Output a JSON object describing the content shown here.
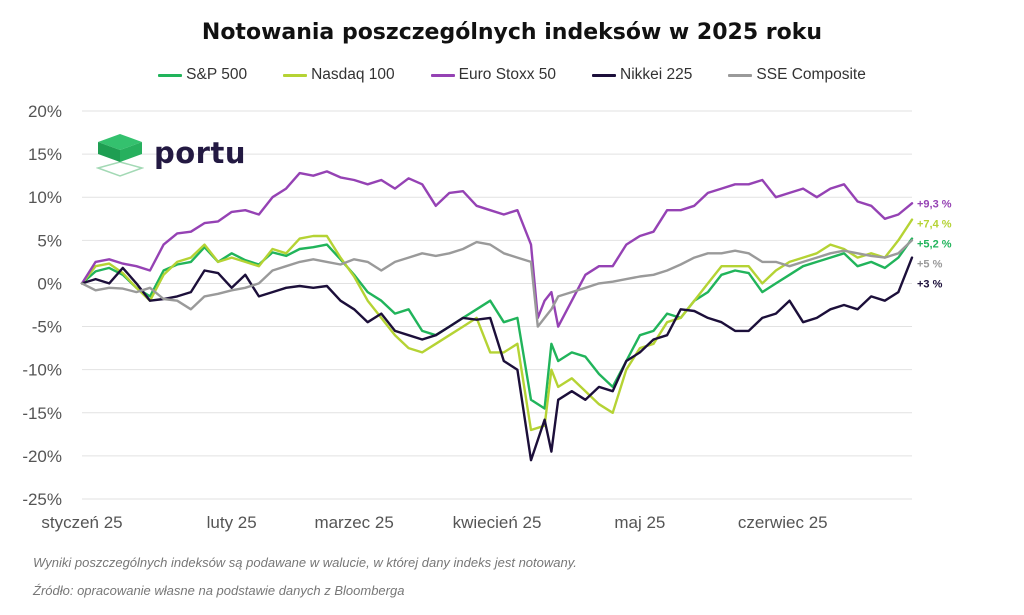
{
  "logo": {
    "text": "portu",
    "color": "#231942",
    "icon": "stacked-cube-logo-icon"
  },
  "footnotes": [
    "Wyniki poszczególnych indeksów są podawane w walucie, w której dany indeks jest notowany.",
    "Źródło: opracowanie własne na podstawie danych z Bloomberga"
  ],
  "chart_data": {
    "type": "line",
    "title": "Notowania poszczególnych indeksów w 2025 roku",
    "xlabel": "",
    "ylabel": "",
    "x_ticks": [
      "styczeń 25",
      "luty 25",
      "marzec 25",
      "kwiecień 25",
      "maj 25",
      "czerwiec 25"
    ],
    "x_range": [
      0,
      122
    ],
    "x_tick_positions": [
      0,
      22,
      40,
      61,
      82,
      103
    ],
    "ylim": [
      -25,
      20
    ],
    "y_ticks": [
      "20%",
      "15%",
      "10%",
      "5%",
      "0%",
      "-5%",
      "-10%",
      "-15%",
      "-20%",
      "-25%"
    ],
    "grid": true,
    "legend_position": "top",
    "series": [
      {
        "name": "S&P 500",
        "color": "#21B45B",
        "end_label": "+5,2 %",
        "points": [
          [
            0,
            0
          ],
          [
            2,
            1.4
          ],
          [
            4,
            1.8
          ],
          [
            6,
            1
          ],
          [
            8,
            -0.5
          ],
          [
            10,
            -1.5
          ],
          [
            12,
            1.5
          ],
          [
            14,
            2.2
          ],
          [
            16,
            2.5
          ],
          [
            18,
            4.2
          ],
          [
            20,
            2.5
          ],
          [
            22,
            3.5
          ],
          [
            24,
            2.7
          ],
          [
            26,
            2.2
          ],
          [
            28,
            3.6
          ],
          [
            30,
            3.2
          ],
          [
            32,
            4
          ],
          [
            34,
            4.2
          ],
          [
            36,
            4.5
          ],
          [
            38,
            2.8
          ],
          [
            40,
            1
          ],
          [
            42,
            -1
          ],
          [
            44,
            -2
          ],
          [
            46,
            -3.5
          ],
          [
            48,
            -3
          ],
          [
            50,
            -5.5
          ],
          [
            52,
            -6
          ],
          [
            54,
            -5
          ],
          [
            56,
            -4
          ],
          [
            58,
            -3
          ],
          [
            60,
            -2
          ],
          [
            62,
            -4.5
          ],
          [
            64,
            -4
          ],
          [
            66,
            -13.5
          ],
          [
            68,
            -14.5
          ],
          [
            69,
            -7
          ],
          [
            70,
            -9
          ],
          [
            72,
            -8
          ],
          [
            74,
            -8.5
          ],
          [
            76,
            -10.5
          ],
          [
            78,
            -12
          ],
          [
            80,
            -9
          ],
          [
            82,
            -6
          ],
          [
            84,
            -5.5
          ],
          [
            86,
            -3.5
          ],
          [
            88,
            -4
          ],
          [
            90,
            -2
          ],
          [
            92,
            -1
          ],
          [
            94,
            1
          ],
          [
            96,
            1.5
          ],
          [
            98,
            1.2
          ],
          [
            100,
            -1
          ],
          [
            102,
            0
          ],
          [
            104,
            1
          ],
          [
            106,
            2
          ],
          [
            108,
            2.5
          ],
          [
            110,
            3
          ],
          [
            112,
            3.5
          ],
          [
            114,
            2
          ],
          [
            116,
            2.5
          ],
          [
            118,
            1.8
          ],
          [
            120,
            3
          ],
          [
            122,
            5.2
          ]
        ]
      },
      {
        "name": "Nasdaq 100",
        "color": "#B5D334",
        "end_label": "+7,4 %",
        "points": [
          [
            0,
            0
          ],
          [
            2,
            2
          ],
          [
            4,
            2.3
          ],
          [
            6,
            1.2
          ],
          [
            8,
            -0.5
          ],
          [
            10,
            -2
          ],
          [
            12,
            1
          ],
          [
            14,
            2.5
          ],
          [
            16,
            3
          ],
          [
            18,
            4.5
          ],
          [
            20,
            2.5
          ],
          [
            22,
            3
          ],
          [
            24,
            2.5
          ],
          [
            26,
            2
          ],
          [
            28,
            4
          ],
          [
            30,
            3.5
          ],
          [
            32,
            5.2
          ],
          [
            34,
            5.5
          ],
          [
            36,
            5.5
          ],
          [
            38,
            3
          ],
          [
            40,
            0.8
          ],
          [
            42,
            -2
          ],
          [
            44,
            -4
          ],
          [
            46,
            -6
          ],
          [
            48,
            -7.5
          ],
          [
            50,
            -8
          ],
          [
            52,
            -7
          ],
          [
            54,
            -6
          ],
          [
            56,
            -5
          ],
          [
            58,
            -4
          ],
          [
            60,
            -8
          ],
          [
            62,
            -8
          ],
          [
            64,
            -7
          ],
          [
            66,
            -17
          ],
          [
            68,
            -16.5
          ],
          [
            69,
            -10
          ],
          [
            70,
            -12
          ],
          [
            72,
            -11
          ],
          [
            74,
            -12.5
          ],
          [
            76,
            -14
          ],
          [
            78,
            -15
          ],
          [
            80,
            -10
          ],
          [
            82,
            -7.5
          ],
          [
            84,
            -7
          ],
          [
            86,
            -4.5
          ],
          [
            88,
            -4
          ],
          [
            90,
            -2
          ],
          [
            92,
            0
          ],
          [
            94,
            2
          ],
          [
            96,
            2
          ],
          [
            98,
            2
          ],
          [
            100,
            0
          ],
          [
            102,
            1.5
          ],
          [
            104,
            2.5
          ],
          [
            106,
            3
          ],
          [
            108,
            3.5
          ],
          [
            110,
            4.5
          ],
          [
            112,
            4
          ],
          [
            114,
            3
          ],
          [
            116,
            3.5
          ],
          [
            118,
            3
          ],
          [
            120,
            5
          ],
          [
            122,
            7.4
          ]
        ]
      },
      {
        "name": "Euro Stoxx 50",
        "color": "#9542B4",
        "end_label": "+9,3 %",
        "points": [
          [
            0,
            0
          ],
          [
            2,
            2.5
          ],
          [
            4,
            2.8
          ],
          [
            6,
            2.3
          ],
          [
            8,
            2
          ],
          [
            10,
            1.5
          ],
          [
            12,
            4.5
          ],
          [
            14,
            5.8
          ],
          [
            16,
            6
          ],
          [
            18,
            7
          ],
          [
            20,
            7.2
          ],
          [
            22,
            8.3
          ],
          [
            24,
            8.5
          ],
          [
            26,
            8
          ],
          [
            28,
            10
          ],
          [
            30,
            11
          ],
          [
            32,
            12.8
          ],
          [
            34,
            12.5
          ],
          [
            36,
            13
          ],
          [
            38,
            12.3
          ],
          [
            40,
            12
          ],
          [
            42,
            11.5
          ],
          [
            44,
            12
          ],
          [
            46,
            11
          ],
          [
            48,
            12.2
          ],
          [
            50,
            11.5
          ],
          [
            52,
            9
          ],
          [
            54,
            10.5
          ],
          [
            56,
            10.7
          ],
          [
            58,
            9
          ],
          [
            60,
            8.5
          ],
          [
            62,
            8
          ],
          [
            64,
            8.5
          ],
          [
            66,
            4.5
          ],
          [
            67,
            -4
          ],
          [
            68,
            -2
          ],
          [
            69,
            -1
          ],
          [
            70,
            -5
          ],
          [
            72,
            -2
          ],
          [
            74,
            1
          ],
          [
            76,
            2
          ],
          [
            78,
            2
          ],
          [
            80,
            4.5
          ],
          [
            82,
            5.5
          ],
          [
            84,
            6
          ],
          [
            86,
            8.5
          ],
          [
            88,
            8.5
          ],
          [
            90,
            9
          ],
          [
            92,
            10.5
          ],
          [
            94,
            11
          ],
          [
            96,
            11.5
          ],
          [
            98,
            11.5
          ],
          [
            100,
            12
          ],
          [
            102,
            10
          ],
          [
            104,
            10.5
          ],
          [
            106,
            11
          ],
          [
            108,
            10
          ],
          [
            110,
            11
          ],
          [
            112,
            11.5
          ],
          [
            114,
            9.5
          ],
          [
            116,
            9
          ],
          [
            118,
            7.5
          ],
          [
            120,
            8
          ],
          [
            122,
            9.3
          ]
        ]
      },
      {
        "name": "Nikkei 225",
        "color": "#1C0F3A",
        "end_label": "+3 %",
        "points": [
          [
            0,
            0
          ],
          [
            2,
            0.5
          ],
          [
            4,
            0
          ],
          [
            6,
            1.8
          ],
          [
            8,
            0
          ],
          [
            10,
            -2
          ],
          [
            12,
            -1.8
          ],
          [
            14,
            -1.5
          ],
          [
            16,
            -1
          ],
          [
            18,
            1.5
          ],
          [
            20,
            1.2
          ],
          [
            22,
            -0.5
          ],
          [
            24,
            1
          ],
          [
            26,
            -1.5
          ],
          [
            28,
            -1
          ],
          [
            30,
            -0.5
          ],
          [
            32,
            -0.3
          ],
          [
            34,
            -0.5
          ],
          [
            36,
            -0.3
          ],
          [
            38,
            -2
          ],
          [
            40,
            -3
          ],
          [
            42,
            -4.5
          ],
          [
            44,
            -3.5
          ],
          [
            46,
            -5.5
          ],
          [
            48,
            -6
          ],
          [
            50,
            -6.5
          ],
          [
            52,
            -6
          ],
          [
            54,
            -5
          ],
          [
            56,
            -4
          ],
          [
            58,
            -4.2
          ],
          [
            60,
            -4
          ],
          [
            62,
            -9
          ],
          [
            64,
            -10
          ],
          [
            66,
            -20.5
          ],
          [
            68,
            -15.8
          ],
          [
            69,
            -19.5
          ],
          [
            70,
            -13.5
          ],
          [
            72,
            -12.5
          ],
          [
            74,
            -13.5
          ],
          [
            76,
            -12
          ],
          [
            78,
            -12.5
          ],
          [
            80,
            -9
          ],
          [
            82,
            -8
          ],
          [
            84,
            -6.5
          ],
          [
            86,
            -6
          ],
          [
            88,
            -3
          ],
          [
            90,
            -3.2
          ],
          [
            92,
            -4
          ],
          [
            94,
            -4.5
          ],
          [
            96,
            -5.5
          ],
          [
            98,
            -5.5
          ],
          [
            100,
            -4
          ],
          [
            102,
            -3.5
          ],
          [
            104,
            -2
          ],
          [
            106,
            -4.5
          ],
          [
            108,
            -4
          ],
          [
            110,
            -3
          ],
          [
            112,
            -2.5
          ],
          [
            114,
            -3
          ],
          [
            116,
            -1.5
          ],
          [
            118,
            -2
          ],
          [
            120,
            -1
          ],
          [
            122,
            3
          ]
        ]
      },
      {
        "name": "SSE Composite",
        "color": "#9A9A9A",
        "end_label": "+5 %",
        "points": [
          [
            0,
            0
          ],
          [
            2,
            -0.8
          ],
          [
            4,
            -0.5
          ],
          [
            6,
            -0.6
          ],
          [
            8,
            -1
          ],
          [
            10,
            -0.5
          ],
          [
            12,
            -1.8
          ],
          [
            14,
            -2
          ],
          [
            16,
            -3
          ],
          [
            18,
            -1.5
          ],
          [
            20,
            -1.2
          ],
          [
            22,
            -0.8
          ],
          [
            24,
            -0.5
          ],
          [
            26,
            0
          ],
          [
            28,
            1.5
          ],
          [
            30,
            2
          ],
          [
            32,
            2.5
          ],
          [
            34,
            2.8
          ],
          [
            36,
            2.5
          ],
          [
            38,
            2.2
          ],
          [
            40,
            2.8
          ],
          [
            42,
            2.5
          ],
          [
            44,
            1.5
          ],
          [
            46,
            2.5
          ],
          [
            48,
            3
          ],
          [
            50,
            3.5
          ],
          [
            52,
            3.2
          ],
          [
            54,
            3.5
          ],
          [
            56,
            4
          ],
          [
            58,
            4.8
          ],
          [
            60,
            4.5
          ],
          [
            62,
            3.5
          ],
          [
            64,
            3
          ],
          [
            66,
            2.5
          ],
          [
            67,
            -5
          ],
          [
            68,
            -4
          ],
          [
            69,
            -3
          ],
          [
            70,
            -1.5
          ],
          [
            72,
            -1
          ],
          [
            74,
            -0.5
          ],
          [
            76,
            0
          ],
          [
            78,
            0.2
          ],
          [
            80,
            0.5
          ],
          [
            82,
            0.8
          ],
          [
            84,
            1
          ],
          [
            86,
            1.5
          ],
          [
            88,
            2.2
          ],
          [
            90,
            3
          ],
          [
            92,
            3.5
          ],
          [
            94,
            3.5
          ],
          [
            96,
            3.8
          ],
          [
            98,
            3.5
          ],
          [
            100,
            2.5
          ],
          [
            102,
            2.5
          ],
          [
            104,
            2
          ],
          [
            106,
            2.5
          ],
          [
            108,
            3
          ],
          [
            110,
            3.5
          ],
          [
            112,
            3.8
          ],
          [
            114,
            3.5
          ],
          [
            116,
            3.2
          ],
          [
            118,
            3
          ],
          [
            120,
            3.5
          ],
          [
            122,
            5
          ]
        ]
      }
    ]
  }
}
